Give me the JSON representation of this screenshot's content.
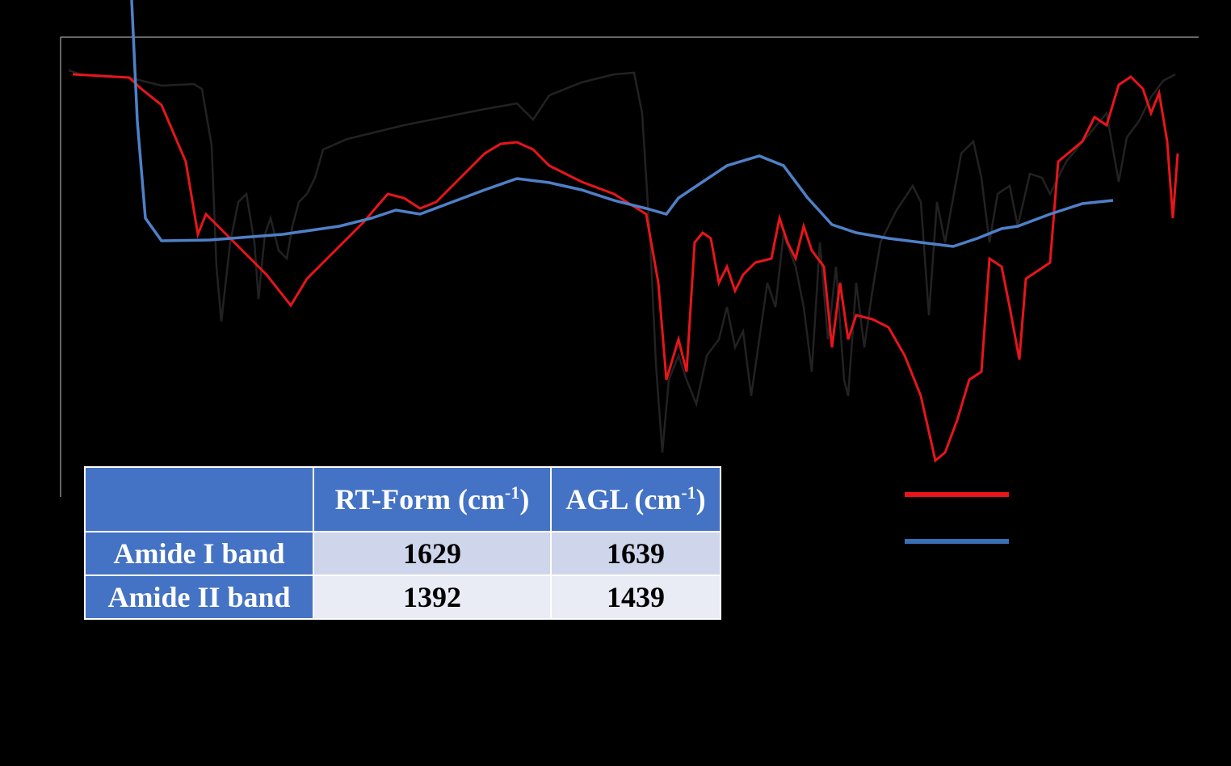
{
  "table": {
    "columns": [
      [
        "RT-Form (cm",
        "-1",
        ")"
      ],
      [
        "AGL (cm",
        "-1",
        ")"
      ]
    ],
    "rows": [
      [
        "Amide I band",
        1629,
        1639
      ],
      [
        "Amide II band",
        1392,
        1439
      ]
    ]
  }
}
